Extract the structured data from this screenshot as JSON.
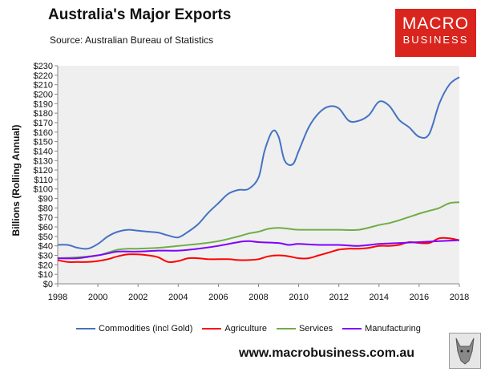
{
  "header": {
    "title": "Australia's Major Exports",
    "source": "Source: Australian Bureau of Statistics"
  },
  "logo": {
    "line1": "MACRO",
    "line2": "BUSINESS"
  },
  "footer": {
    "url": "www.macrobusiness.com.au"
  },
  "colors": {
    "commodities": "#4472c4",
    "agriculture": "#ff0000",
    "services": "#70ad47",
    "manufacturing": "#7f00ff",
    "plot_bg": "#efefef",
    "brand": "#d9251d"
  },
  "chart_data": {
    "type": "line",
    "title": "Australia's Major Exports",
    "xlabel": "",
    "ylabel": "Billions (Rolling Annual)",
    "xlim": [
      1998,
      2018
    ],
    "ylim": [
      0,
      230
    ],
    "x_ticks": [
      "1998",
      "2000",
      "2002",
      "2004",
      "2006",
      "2008",
      "2010",
      "2012",
      "2014",
      "2016",
      "2018"
    ],
    "x_tick_values": [
      1998,
      2000,
      2002,
      2004,
      2006,
      2008,
      2010,
      2012,
      2014,
      2016,
      2018
    ],
    "y_ticks": [
      "$0",
      "$10",
      "$20",
      "$30",
      "$40",
      "$50",
      "$60",
      "$70",
      "$80",
      "$90",
      "$100",
      "$110",
      "$120",
      "$130",
      "$140",
      "$150",
      "$160",
      "$170",
      "$180",
      "$190",
      "$200",
      "$210",
      "$220",
      "$230"
    ],
    "y_tick_values": [
      0,
      10,
      20,
      30,
      40,
      50,
      60,
      70,
      80,
      90,
      100,
      110,
      120,
      130,
      140,
      150,
      160,
      170,
      180,
      190,
      200,
      210,
      220,
      230
    ],
    "legend_position": "bottom",
    "series": [
      {
        "name": "Commodities (incl Gold)",
        "color": "#4472c4",
        "x": [
          1998,
          1998.5,
          1999,
          1999.5,
          2000,
          2000.5,
          2001,
          2001.5,
          2002,
          2002.5,
          2003,
          2003.5,
          2004,
          2004.5,
          2005,
          2005.5,
          2006,
          2006.5,
          2007,
          2007.5,
          2008,
          2008.3,
          2008.7,
          2009,
          2009.3,
          2009.7,
          2010,
          2010.5,
          2011,
          2011.5,
          2012,
          2012.5,
          2013,
          2013.5,
          2014,
          2014.5,
          2015,
          2015.5,
          2016,
          2016.5,
          2017,
          2017.5,
          2018
        ],
        "values": [
          41,
          41,
          38,
          37,
          42,
          50,
          55,
          57,
          56,
          55,
          54,
          51,
          49,
          55,
          63,
          75,
          85,
          95,
          99,
          100,
          112,
          140,
          161,
          155,
          130,
          126,
          140,
          165,
          180,
          187,
          185,
          172,
          172,
          178,
          192,
          188,
          173,
          165,
          155,
          158,
          190,
          210,
          218
        ]
      },
      {
        "name": "Agriculture",
        "color": "#ff0000",
        "x": [
          1998,
          1998.5,
          1999,
          1999.5,
          2000,
          2000.5,
          2001,
          2001.5,
          2002,
          2002.5,
          2003,
          2003.5,
          2004,
          2004.5,
          2005,
          2005.5,
          2006,
          2006.5,
          2007,
          2007.5,
          2008,
          2008.5,
          2009,
          2009.5,
          2010,
          2010.5,
          2011,
          2011.5,
          2012,
          2012.5,
          2013,
          2013.5,
          2014,
          2014.5,
          2015,
          2015.5,
          2016,
          2016.5,
          2017,
          2017.5,
          2018
        ],
        "values": [
          25,
          23,
          23,
          23,
          24,
          26,
          29,
          31,
          31,
          30,
          28,
          23,
          24,
          27,
          27,
          26,
          26,
          26,
          25,
          25,
          26,
          29,
          30,
          29,
          27,
          27,
          30,
          33,
          36,
          37,
          37,
          38,
          40,
          40,
          41,
          44,
          43,
          43,
          48,
          48,
          46
        ]
      },
      {
        "name": "Services",
        "color": "#70ad47",
        "x": [
          1998,
          1999,
          2000,
          2000.5,
          2001,
          2001.5,
          2002,
          2003,
          2004,
          2005,
          2006,
          2007,
          2007.5,
          2008,
          2008.5,
          2009,
          2009.5,
          2010,
          2011,
          2012,
          2013,
          2014,
          2014.5,
          2015,
          2016,
          2016.5,
          2017,
          2017.5,
          2018
        ],
        "values": [
          27,
          28,
          30,
          33,
          36,
          37,
          37,
          38,
          40,
          42,
          45,
          50,
          53,
          55,
          58,
          59,
          58,
          57,
          57,
          57,
          57,
          62,
          64,
          67,
          74,
          77,
          80,
          85,
          86
        ]
      },
      {
        "name": "Manufacturing",
        "color": "#7f00ff",
        "x": [
          1998,
          1999,
          2000,
          2000.5,
          2001,
          2002,
          2003,
          2004,
          2005,
          2006,
          2007,
          2007.5,
          2008,
          2009,
          2009.5,
          2010,
          2011,
          2012,
          2013,
          2014,
          2015,
          2016,
          2017,
          2018
        ],
        "values": [
          27,
          27,
          30,
          32,
          34,
          34,
          35,
          35,
          37,
          40,
          44,
          45,
          44,
          43,
          41,
          42,
          41,
          41,
          40,
          42,
          43,
          44,
          45,
          46
        ]
      }
    ]
  }
}
